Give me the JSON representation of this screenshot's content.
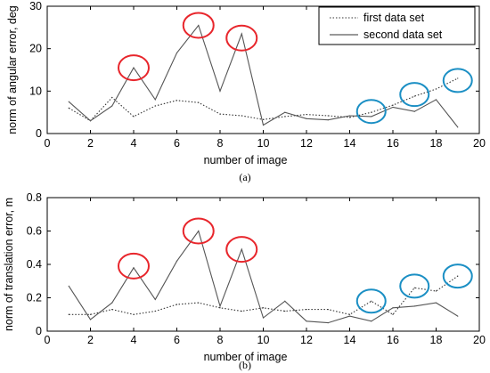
{
  "chart_data": [
    {
      "type": "line",
      "caption": "(a)",
      "xlabel": "number of image",
      "ylabel": "norm of angular error, deg",
      "xlim": [
        0,
        20
      ],
      "ylim": [
        0,
        30
      ],
      "xticks": [
        "0",
        "2",
        "4",
        "6",
        "8",
        "10",
        "12",
        "14",
        "16",
        "18",
        "20"
      ],
      "yticks": [
        "0",
        "10",
        "20",
        "30"
      ],
      "grid": false,
      "legend_position": "top-right",
      "series": [
        {
          "name": "first data set",
          "style": "dotted",
          "x": [
            1,
            2,
            3,
            4,
            5,
            6,
            7,
            8,
            9,
            10,
            11,
            12,
            13,
            14,
            15,
            16,
            17,
            18,
            19
          ],
          "values": [
            6,
            3,
            8.5,
            4,
            6.5,
            7.8,
            7.3,
            4.6,
            4.2,
            3.3,
            4,
            4.5,
            4.2,
            3.8,
            5,
            6.7,
            8.8,
            10.5,
            13
          ]
        },
        {
          "name": "second data set",
          "style": "solid",
          "x": [
            1,
            2,
            3,
            4,
            5,
            6,
            7,
            8,
            9,
            10,
            11,
            12,
            13,
            14,
            15,
            16,
            17,
            18,
            19
          ],
          "values": [
            7.5,
            3,
            6.5,
            15.5,
            8,
            19,
            25.5,
            10,
            23.5,
            2,
            5,
            3.5,
            3.2,
            4.2,
            4,
            6.2,
            5.2,
            8,
            1.5
          ]
        }
      ],
      "annotations": [
        {
          "shape": "circle",
          "color": "#e8262c",
          "x": 4,
          "y": 15.5
        },
        {
          "shape": "circle",
          "color": "#e8262c",
          "x": 7,
          "y": 25.5
        },
        {
          "shape": "circle",
          "color": "#e8262c",
          "x": 9,
          "y": 22.5
        },
        {
          "shape": "circle",
          "color": "#1b8fc4",
          "x": 15,
          "y": 5.2
        },
        {
          "shape": "circle",
          "color": "#1b8fc4",
          "x": 17,
          "y": 9.2
        },
        {
          "shape": "circle",
          "color": "#1b8fc4",
          "x": 19,
          "y": 12.5
        }
      ]
    },
    {
      "type": "line",
      "caption": "(b)",
      "xlabel": "number of image",
      "ylabel": "norm of translation error, m",
      "xlim": [
        0,
        20
      ],
      "ylim": [
        0,
        0.8
      ],
      "xticks": [
        "0",
        "2",
        "4",
        "6",
        "8",
        "10",
        "12",
        "14",
        "16",
        "18",
        "20"
      ],
      "yticks": [
        "0",
        "0.2",
        "0.4",
        "0.6",
        "0.8"
      ],
      "grid": false,
      "series": [
        {
          "style": "dotted",
          "x": [
            1,
            2,
            3,
            4,
            5,
            6,
            7,
            8,
            9,
            10,
            11,
            12,
            13,
            14,
            15,
            16,
            17,
            18,
            19
          ],
          "values": [
            0.1,
            0.1,
            0.13,
            0.1,
            0.12,
            0.16,
            0.17,
            0.14,
            0.12,
            0.14,
            0.12,
            0.13,
            0.13,
            0.1,
            0.18,
            0.1,
            0.26,
            0.24,
            0.33
          ]
        },
        {
          "style": "solid",
          "x": [
            1,
            2,
            3,
            4,
            5,
            6,
            7,
            8,
            9,
            10,
            11,
            12,
            13,
            14,
            15,
            16,
            17,
            18,
            19
          ],
          "values": [
            0.27,
            0.07,
            0.17,
            0.38,
            0.19,
            0.42,
            0.6,
            0.15,
            0.49,
            0.08,
            0.18,
            0.06,
            0.05,
            0.09,
            0.06,
            0.14,
            0.15,
            0.17,
            0.09
          ]
        }
      ],
      "annotations": [
        {
          "shape": "circle",
          "color": "#e8262c",
          "x": 4,
          "y": 0.39
        },
        {
          "shape": "circle",
          "color": "#e8262c",
          "x": 7,
          "y": 0.6
        },
        {
          "shape": "circle",
          "color": "#e8262c",
          "x": 9,
          "y": 0.49
        },
        {
          "shape": "circle",
          "color": "#1b8fc4",
          "x": 15,
          "y": 0.18
        },
        {
          "shape": "circle",
          "color": "#1b8fc4",
          "x": 17,
          "y": 0.27
        },
        {
          "shape": "circle",
          "color": "#1b8fc4",
          "x": 19,
          "y": 0.33
        }
      ]
    }
  ]
}
